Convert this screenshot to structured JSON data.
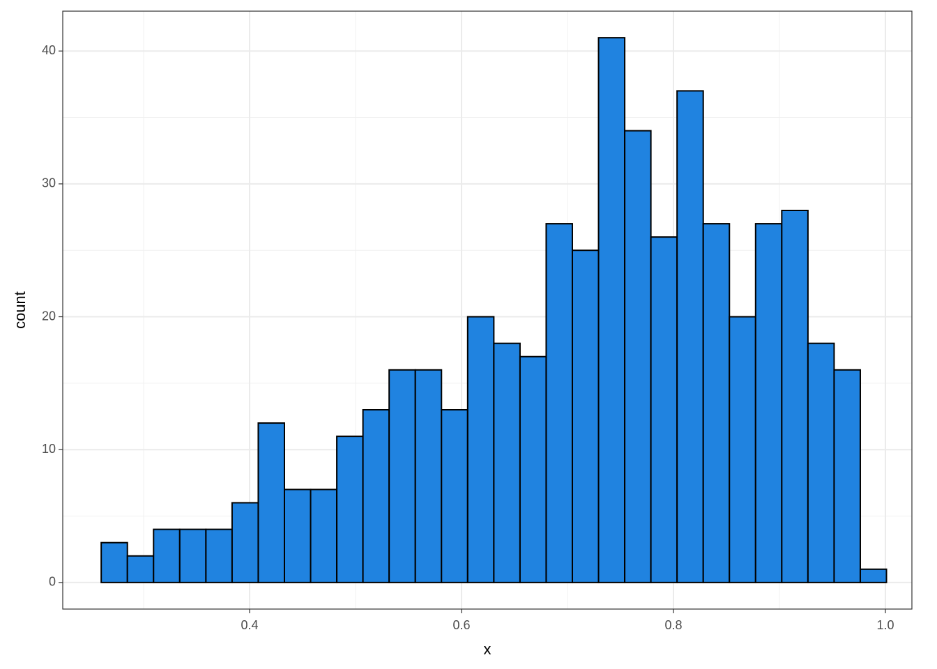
{
  "chart_data": {
    "type": "histogram",
    "x_label": "x",
    "y_label": "count",
    "bins": [
      0.26,
      0.2847,
      0.3094,
      0.3341,
      0.3588,
      0.3835,
      0.4082,
      0.4329,
      0.4576,
      0.4823,
      0.507,
      0.5317,
      0.5564,
      0.5811,
      0.6058,
      0.6305,
      0.6552,
      0.6799,
      0.7046,
      0.7293,
      0.754,
      0.7787,
      0.8034,
      0.8281,
      0.8528,
      0.8775,
      0.9022,
      0.9269,
      0.9516,
      0.9763,
      1.001
    ],
    "values": [
      3,
      2,
      4,
      4,
      4,
      6,
      12,
      7,
      7,
      11,
      13,
      16,
      16,
      13,
      20,
      18,
      17,
      27,
      25,
      41,
      34,
      26,
      37,
      27,
      20,
      27,
      28,
      18,
      16,
      1
    ],
    "color": "#2083e0",
    "edge_color": "#000000",
    "xlim": [
      0.2237,
      1.025
    ],
    "ylim": [
      -2,
      43
    ],
    "xticks": [
      0.4,
      0.6,
      0.8,
      {
        "value": 1,
        "label": "1.0"
      }
    ],
    "yticks": [
      0,
      10,
      20,
      30,
      40
    ],
    "grid": true
  }
}
